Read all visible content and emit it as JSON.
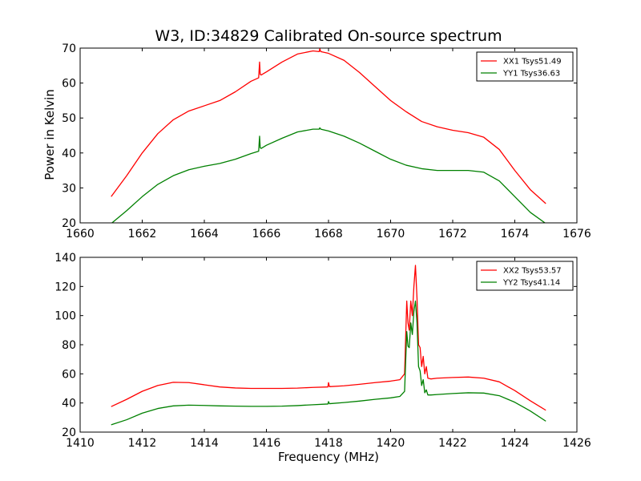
{
  "chart_data": [
    {
      "type": "line",
      "title": "W3, ID:34829 Calibrated On-source spectrum",
      "xlabel": "",
      "ylabel": "Power in Kelvin",
      "xlim": [
        1660,
        1676
      ],
      "ylim": [
        20,
        70
      ],
      "xticks": [
        1660,
        1662,
        1664,
        1666,
        1668,
        1670,
        1672,
        1674,
        1676
      ],
      "yticks": [
        20,
        30,
        40,
        50,
        60,
        70
      ],
      "grid": false,
      "legend_position": "top-right",
      "series": [
        {
          "name": "XX1 Tsys51.49",
          "color": "#ff0000",
          "x": [
            1661.0,
            1661.5,
            1662.0,
            1662.5,
            1663.0,
            1663.5,
            1664.0,
            1664.5,
            1665.0,
            1665.5,
            1665.75,
            1665.78,
            1665.8,
            1665.83,
            1666.0,
            1666.5,
            1667.0,
            1667.5,
            1667.7,
            1667.72,
            1667.75,
            1668.0,
            1668.5,
            1669.0,
            1669.5,
            1670.0,
            1670.5,
            1671.0,
            1671.5,
            1672.0,
            1672.5,
            1673.0,
            1673.5,
            1674.0,
            1674.5,
            1675.0
          ],
          "y": [
            27.5,
            33.5,
            40.0,
            45.5,
            49.5,
            52.0,
            53.5,
            55.0,
            57.5,
            60.5,
            61.5,
            66.0,
            62.5,
            62.3,
            63.2,
            66.0,
            68.3,
            69.2,
            69.0,
            69.8,
            69.0,
            68.5,
            66.5,
            63.0,
            59.0,
            55.0,
            51.8,
            49.0,
            47.5,
            46.5,
            45.8,
            44.5,
            41.0,
            35.0,
            29.5,
            25.5
          ]
        },
        {
          "name": "YY1 Tsys36.63",
          "color": "#008000",
          "x": [
            1661.0,
            1661.5,
            1662.0,
            1662.5,
            1663.0,
            1663.5,
            1664.0,
            1664.5,
            1665.0,
            1665.5,
            1665.75,
            1665.78,
            1665.8,
            1665.83,
            1666.0,
            1666.5,
            1667.0,
            1667.5,
            1667.7,
            1667.72,
            1667.75,
            1668.0,
            1668.5,
            1669.0,
            1669.5,
            1670.0,
            1670.5,
            1671.0,
            1671.5,
            1672.0,
            1672.5,
            1673.0,
            1673.5,
            1674.0,
            1674.5,
            1675.0
          ],
          "y": [
            19.8,
            23.5,
            27.5,
            31.0,
            33.5,
            35.2,
            36.2,
            37.0,
            38.2,
            39.8,
            40.5,
            44.8,
            41.5,
            41.3,
            42.2,
            44.2,
            46.0,
            46.8,
            46.8,
            47.2,
            46.8,
            46.3,
            44.8,
            42.8,
            40.5,
            38.2,
            36.5,
            35.5,
            35.0,
            35.0,
            35.0,
            34.5,
            32.0,
            27.5,
            23.0,
            19.8
          ]
        }
      ]
    },
    {
      "type": "line",
      "title": "",
      "xlabel": "Frequency (MHz)",
      "ylabel": "",
      "xlim": [
        1410,
        1426
      ],
      "ylim": [
        20,
        140
      ],
      "xticks": [
        1410,
        1412,
        1414,
        1416,
        1418,
        1420,
        1422,
        1424,
        1426
      ],
      "yticks": [
        20,
        40,
        60,
        80,
        100,
        120,
        140
      ],
      "grid": false,
      "legend_position": "top-right",
      "series": [
        {
          "name": "XX2 Tsys53.57",
          "color": "#ff0000",
          "x": [
            1411.0,
            1411.5,
            1412.0,
            1412.5,
            1413.0,
            1413.5,
            1414.0,
            1414.5,
            1415.0,
            1415.5,
            1416.0,
            1416.5,
            1417.0,
            1417.5,
            1417.98,
            1418.0,
            1418.03,
            1418.5,
            1419.0,
            1419.5,
            1420.0,
            1420.3,
            1420.45,
            1420.52,
            1420.56,
            1420.6,
            1420.65,
            1420.7,
            1420.75,
            1420.8,
            1420.85,
            1420.9,
            1420.95,
            1421.0,
            1421.05,
            1421.1,
            1421.15,
            1421.2,
            1421.3,
            1421.5,
            1422.0,
            1422.5,
            1423.0,
            1423.5,
            1424.0,
            1424.5,
            1425.0
          ],
          "y": [
            37.5,
            42.5,
            48.0,
            52.0,
            54.2,
            54.0,
            52.5,
            51.0,
            50.3,
            50.0,
            50.0,
            50.0,
            50.2,
            50.7,
            51.0,
            54.0,
            51.2,
            51.8,
            52.8,
            54.0,
            55.0,
            56.0,
            60.0,
            110.0,
            95.0,
            90.0,
            110.0,
            100.0,
            120.0,
            134.5,
            112.0,
            80.0,
            78.0,
            65.0,
            72.0,
            60.0,
            65.0,
            57.0,
            56.5,
            57.0,
            57.5,
            57.8,
            57.0,
            54.5,
            48.5,
            41.5,
            35.0
          ]
        },
        {
          "name": "YY2 Tsys41.14",
          "color": "#008000",
          "x": [
            1411.0,
            1411.5,
            1412.0,
            1412.5,
            1413.0,
            1413.5,
            1414.0,
            1414.5,
            1415.0,
            1415.5,
            1416.0,
            1416.5,
            1417.0,
            1417.5,
            1417.98,
            1418.0,
            1418.03,
            1418.5,
            1419.0,
            1419.5,
            1420.0,
            1420.3,
            1420.45,
            1420.52,
            1420.56,
            1420.6,
            1420.65,
            1420.7,
            1420.75,
            1420.8,
            1420.85,
            1420.9,
            1420.95,
            1421.0,
            1421.05,
            1421.1,
            1421.15,
            1421.2,
            1421.3,
            1421.5,
            1422.0,
            1422.5,
            1423.0,
            1423.5,
            1424.0,
            1424.5,
            1425.0
          ],
          "y": [
            25.0,
            28.5,
            33.0,
            36.2,
            38.0,
            38.5,
            38.3,
            38.0,
            37.8,
            37.7,
            37.7,
            37.8,
            38.2,
            38.8,
            39.3,
            41.0,
            39.5,
            40.3,
            41.3,
            42.5,
            43.5,
            44.5,
            48.0,
            89.0,
            79.0,
            78.0,
            95.0,
            87.0,
            103.0,
            110.0,
            95.0,
            65.0,
            62.0,
            52.0,
            56.0,
            47.0,
            49.0,
            45.5,
            45.5,
            45.8,
            46.5,
            47.0,
            46.8,
            45.0,
            40.5,
            34.5,
            27.5
          ]
        }
      ]
    }
  ]
}
